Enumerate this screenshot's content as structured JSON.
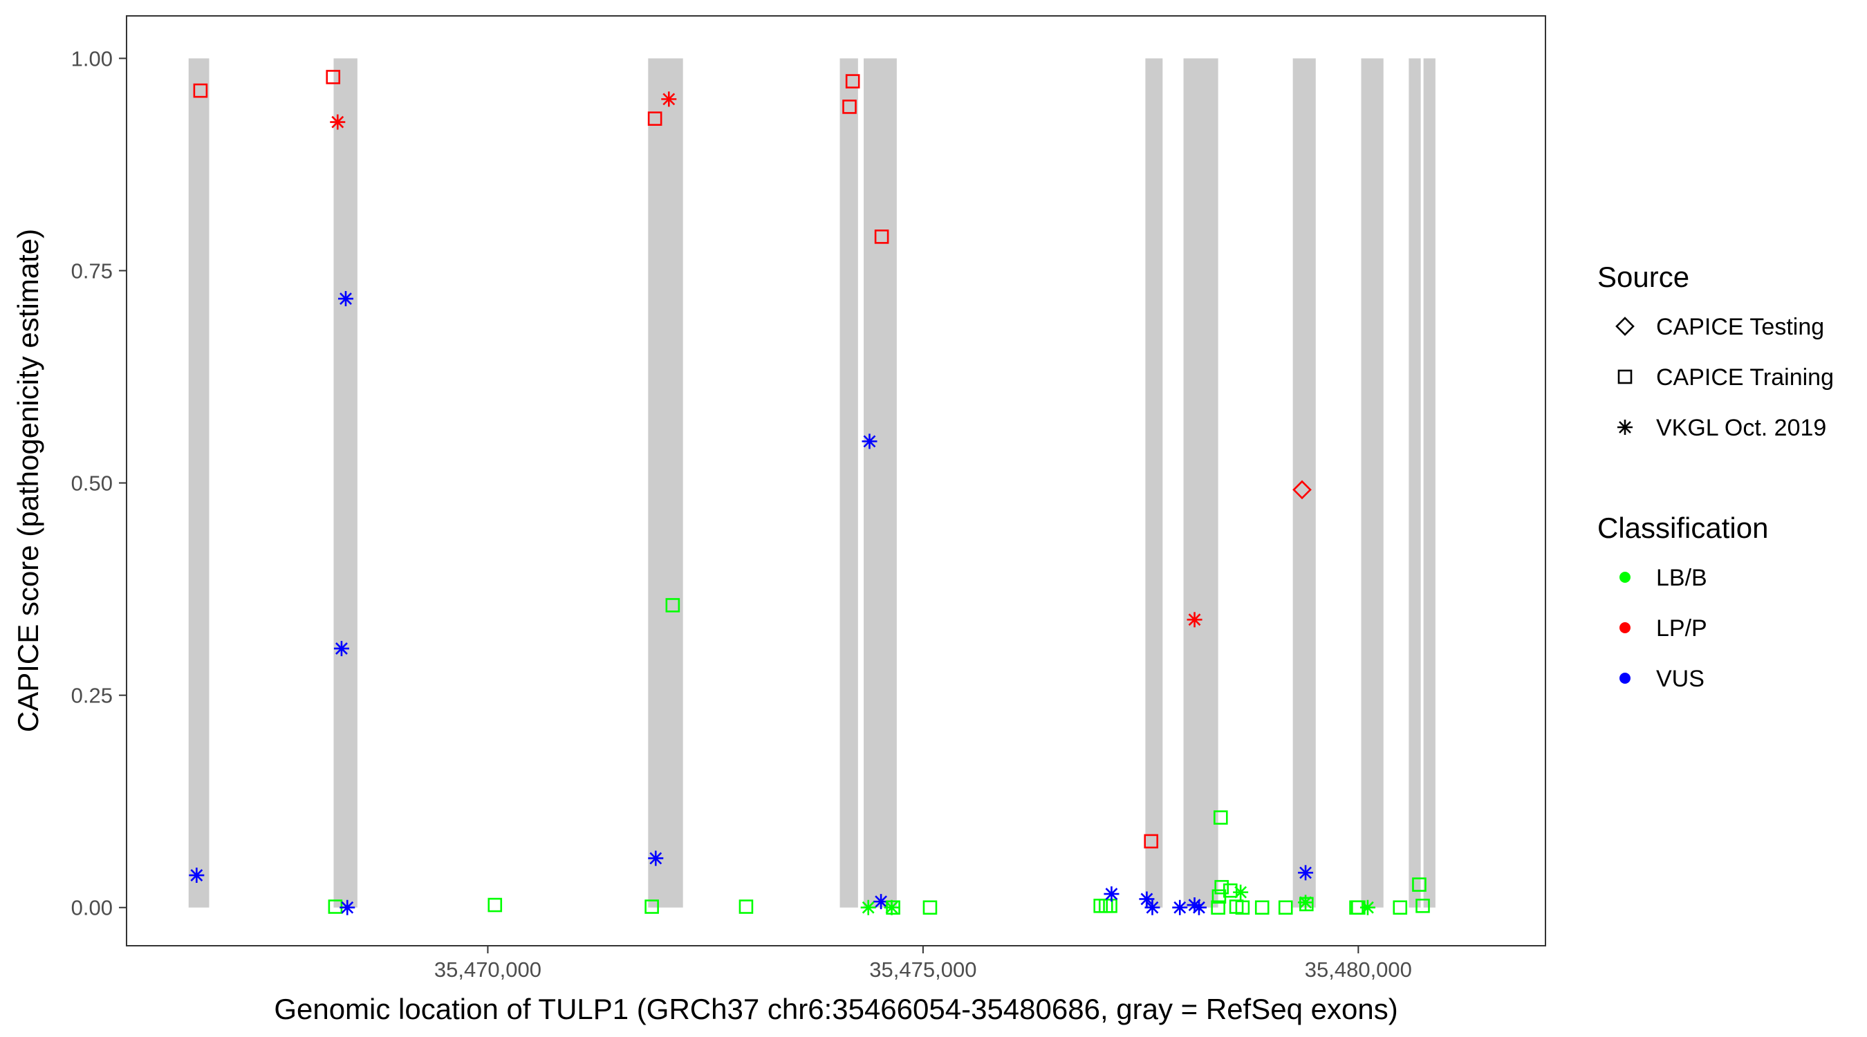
{
  "chart_data": {
    "type": "scatter",
    "title": "",
    "xlabel": "Genomic location of TULP1 (GRCh37 chr6:35466054-35480686, gray = RefSeq exons)",
    "ylabel": "CAPICE score (pathogenicity estimate)",
    "xlim": [
      35465850,
      35482150
    ],
    "ylim": [
      -0.045,
      1.05
    ],
    "x_ticks": [
      {
        "value": 35470000,
        "label": "35,470,000"
      },
      {
        "value": 35475000,
        "label": "35,475,000"
      },
      {
        "value": 35480000,
        "label": "35,480,000"
      }
    ],
    "y_ticks": [
      {
        "value": 0.0,
        "label": "0.00"
      },
      {
        "value": 0.25,
        "label": "0.25"
      },
      {
        "value": 0.5,
        "label": "0.50"
      },
      {
        "value": 0.75,
        "label": "0.75"
      },
      {
        "value": 1.0,
        "label": "1.00"
      }
    ],
    "grid": false,
    "exon_color": "#CCCCCC",
    "exons": [
      {
        "start": 35466563,
        "end": 35466799
      },
      {
        "start": 35468229,
        "end": 35468502
      },
      {
        "start": 35471842,
        "end": 35472242
      },
      {
        "start": 35474044,
        "end": 35474253
      },
      {
        "start": 35474318,
        "end": 35474698
      },
      {
        "start": 35477554,
        "end": 35477752
      },
      {
        "start": 35477992,
        "end": 35478390
      },
      {
        "start": 35479248,
        "end": 35479511
      },
      {
        "start": 35480033,
        "end": 35480289
      },
      {
        "start": 35480580,
        "end": 35480717
      },
      {
        "start": 35480749,
        "end": 35480886
      }
    ],
    "legend": {
      "placement": "right",
      "source_title": "Source",
      "source_items": [
        {
          "label": "CAPICE Testing",
          "shape": "diamond"
        },
        {
          "label": "CAPICE Training",
          "shape": "square"
        },
        {
          "label": "VKGL Oct. 2019",
          "shape": "asterisk"
        }
      ],
      "class_title": "Classification",
      "class_items": [
        {
          "label": "LB/B",
          "color": "#00FF00"
        },
        {
          "label": "LP/P",
          "color": "#FF0000"
        },
        {
          "label": "VUS",
          "color": "#0000FF"
        }
      ]
    },
    "points": [
      {
        "x": 35466699,
        "y": 0.962,
        "shape": "square",
        "cls": "LP/P"
      },
      {
        "x": 35466655,
        "y": 0.038,
        "shape": "asterisk",
        "cls": "VUS"
      },
      {
        "x": 35468223,
        "y": 0.978,
        "shape": "square",
        "cls": "LP/P"
      },
      {
        "x": 35468275,
        "y": 0.925,
        "shape": "asterisk",
        "cls": "LP/P"
      },
      {
        "x": 35468368,
        "y": 0.717,
        "shape": "asterisk",
        "cls": "VUS"
      },
      {
        "x": 35468320,
        "y": 0.305,
        "shape": "asterisk",
        "cls": "VUS"
      },
      {
        "x": 35468248,
        "y": 0.001,
        "shape": "square",
        "cls": "LB/B"
      },
      {
        "x": 35468386,
        "y": 0.0,
        "shape": "asterisk",
        "cls": "VUS"
      },
      {
        "x": 35470082,
        "y": 0.003,
        "shape": "square",
        "cls": "LB/B"
      },
      {
        "x": 35471920,
        "y": 0.929,
        "shape": "square",
        "cls": "LP/P"
      },
      {
        "x": 35472080,
        "y": 0.952,
        "shape": "asterisk",
        "cls": "LP/P"
      },
      {
        "x": 35472124,
        "y": 0.356,
        "shape": "square",
        "cls": "LB/B"
      },
      {
        "x": 35471929,
        "y": 0.058,
        "shape": "asterisk",
        "cls": "VUS"
      },
      {
        "x": 35471884,
        "y": 0.001,
        "shape": "square",
        "cls": "LB/B"
      },
      {
        "x": 35472967,
        "y": 0.001,
        "shape": "square",
        "cls": "LB/B"
      },
      {
        "x": 35474155,
        "y": 0.943,
        "shape": "square",
        "cls": "LP/P"
      },
      {
        "x": 35474192,
        "y": 0.973,
        "shape": "square",
        "cls": "LP/P"
      },
      {
        "x": 35474525,
        "y": 0.79,
        "shape": "square",
        "cls": "LP/P"
      },
      {
        "x": 35474385,
        "y": 0.549,
        "shape": "asterisk",
        "cls": "VUS"
      },
      {
        "x": 35474517,
        "y": 0.007,
        "shape": "asterisk",
        "cls": "VUS"
      },
      {
        "x": 35474371,
        "y": 0.0,
        "shape": "asterisk",
        "cls": "LB/B"
      },
      {
        "x": 35474640,
        "y": 0.0,
        "shape": "asterisk",
        "cls": "LB/B"
      },
      {
        "x": 35474656,
        "y": 0.0,
        "shape": "square",
        "cls": "LB/B"
      },
      {
        "x": 35475080,
        "y": 0.0,
        "shape": "square",
        "cls": "LB/B"
      },
      {
        "x": 35477040,
        "y": 0.002,
        "shape": "square",
        "cls": "LB/B"
      },
      {
        "x": 35477100,
        "y": 0.002,
        "shape": "square",
        "cls": "LB/B"
      },
      {
        "x": 35477150,
        "y": 0.002,
        "shape": "square",
        "cls": "LB/B"
      },
      {
        "x": 35477165,
        "y": 0.016,
        "shape": "asterisk",
        "cls": "VUS"
      },
      {
        "x": 35477570,
        "y": 0.01,
        "shape": "asterisk",
        "cls": "VUS"
      },
      {
        "x": 35477620,
        "y": 0.078,
        "shape": "square",
        "cls": "LP/P"
      },
      {
        "x": 35477634,
        "y": 0.0,
        "shape": "asterisk",
        "cls": "VUS"
      },
      {
        "x": 35477950,
        "y": 0.0,
        "shape": "asterisk",
        "cls": "VUS"
      },
      {
        "x": 35478119,
        "y": 0.339,
        "shape": "asterisk",
        "cls": "LP/P"
      },
      {
        "x": 35478119,
        "y": 0.003,
        "shape": "asterisk",
        "cls": "VUS"
      },
      {
        "x": 35478170,
        "y": 0.0,
        "shape": "asterisk",
        "cls": "VUS"
      },
      {
        "x": 35478390,
        "y": 0.0,
        "shape": "square",
        "cls": "LB/B"
      },
      {
        "x": 35478400,
        "y": 0.013,
        "shape": "square",
        "cls": "LB/B"
      },
      {
        "x": 35478419,
        "y": 0.106,
        "shape": "square",
        "cls": "LB/B"
      },
      {
        "x": 35478430,
        "y": 0.024,
        "shape": "square",
        "cls": "LB/B"
      },
      {
        "x": 35478530,
        "y": 0.02,
        "shape": "square",
        "cls": "LB/B"
      },
      {
        "x": 35478600,
        "y": 0.001,
        "shape": "square",
        "cls": "LB/B"
      },
      {
        "x": 35478670,
        "y": 0.0,
        "shape": "square",
        "cls": "LB/B"
      },
      {
        "x": 35478648,
        "y": 0.018,
        "shape": "asterisk",
        "cls": "LB/B"
      },
      {
        "x": 35478895,
        "y": 0.0,
        "shape": "square",
        "cls": "LB/B"
      },
      {
        "x": 35479165,
        "y": 0.0,
        "shape": "square",
        "cls": "LB/B"
      },
      {
        "x": 35479354,
        "y": 0.492,
        "shape": "diamond",
        "cls": "LP/P"
      },
      {
        "x": 35479394,
        "y": 0.041,
        "shape": "asterisk",
        "cls": "VUS"
      },
      {
        "x": 35479394,
        "y": 0.006,
        "shape": "asterisk",
        "cls": "LB/B"
      },
      {
        "x": 35479404,
        "y": 0.004,
        "shape": "square",
        "cls": "LB/B"
      },
      {
        "x": 35479978,
        "y": 0.0,
        "shape": "square",
        "cls": "LB/B"
      },
      {
        "x": 35480000,
        "y": 0.0,
        "shape": "square",
        "cls": "LB/B"
      },
      {
        "x": 35480108,
        "y": 0.0,
        "shape": "asterisk",
        "cls": "LB/B"
      },
      {
        "x": 35480480,
        "y": 0.0,
        "shape": "square",
        "cls": "LB/B"
      },
      {
        "x": 35480700,
        "y": 0.027,
        "shape": "square",
        "cls": "LB/B"
      },
      {
        "x": 35480740,
        "y": 0.002,
        "shape": "square",
        "cls": "LB/B"
      }
    ]
  }
}
